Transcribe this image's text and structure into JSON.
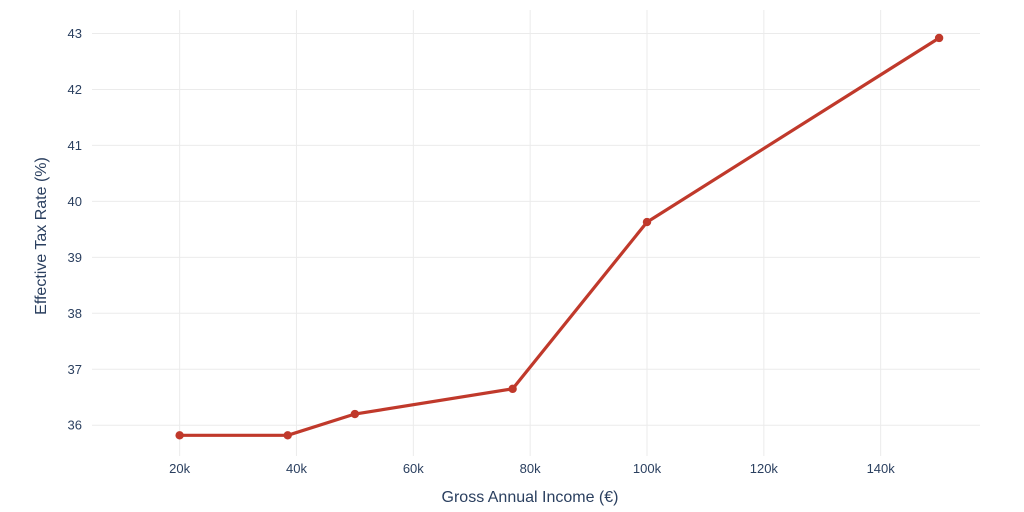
{
  "chart_data": {
    "type": "line",
    "title": "",
    "xlabel": "Gross Annual Income (€)",
    "ylabel": "Effective Tax Rate (%)",
    "x": [
      20000,
      38500,
      50000,
      77000,
      100000,
      150000
    ],
    "series": [
      {
        "values": [
          35.82,
          35.82,
          36.2,
          36.65,
          39.63,
          42.92
        ],
        "color": "#c0392b"
      }
    ],
    "xlim": [
      5000,
      157000
    ],
    "ylim": [
      35.45,
      43.42
    ],
    "x_ticks": [
      20000,
      40000,
      60000,
      80000,
      100000,
      120000,
      140000
    ],
    "x_tick_labels": [
      "20k",
      "40k",
      "60k",
      "80k",
      "100k",
      "120k",
      "140k"
    ],
    "y_ticks": [
      36,
      37,
      38,
      39,
      40,
      41,
      42,
      43
    ],
    "y_tick_labels": [
      "36",
      "37",
      "38",
      "39",
      "40",
      "41",
      "42",
      "43"
    ],
    "grid": true,
    "legend": "none",
    "background_color": "#ffffff",
    "grid_color": "#ebebeb",
    "text_color": "#2a3f5f"
  }
}
